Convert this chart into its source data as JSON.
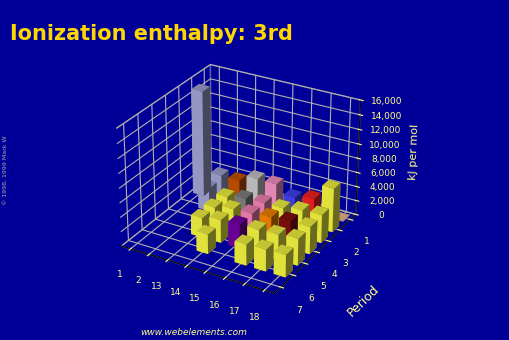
{
  "title": "Ionization enthalpy: 3rd",
  "title_color": "#FFD700",
  "bg_color": "#000099",
  "floor_color": "#606060",
  "tick_color": "#FFFF88",
  "grid_color": "#CCCC99",
  "website": "www.webelements.com",
  "copyright": "© 1998, 1999 Mark W",
  "period_label": "Period",
  "zlabel": "kJ per mol",
  "groups": [
    1,
    2,
    13,
    14,
    15,
    16,
    17,
    18
  ],
  "periods": [
    1,
    2,
    3,
    4,
    5,
    6,
    7
  ],
  "zlim": [
    0,
    16000
  ],
  "zticks": [
    0,
    2000,
    4000,
    6000,
    8000,
    10000,
    12000,
    14000,
    16000
  ],
  "ie3": {
    "1": {
      "1": 0,
      "2": 0,
      "13": 0,
      "14": 0,
      "15": 0,
      "16": 0,
      "17": 0,
      "18": 0
    },
    "2": {
      "1": 14849,
      "2": 3659,
      "13": 3659,
      "14": 4621,
      "15": 4578,
      "16": 3388,
      "17": 3952,
      "18": 6122
    },
    "3": {
      "1": 0,
      "2": 3232,
      "13": 2744,
      "14": 3229,
      "15": 3357,
      "16": 3376,
      "17": 3822,
      "18": 3931
    },
    "4": {
      "1": 0,
      "2": 0,
      "13": 2704,
      "14": 3232,
      "15": 3357,
      "16": 3600,
      "17": 3822,
      "18": 3800
    },
    "5": {
      "1": 0,
      "2": 0,
      "13": 2700,
      "14": 3200,
      "15": 3300,
      "16": 3400,
      "17": 3500,
      "18": 3700
    },
    "6": {
      "1": 0,
      "2": 0,
      "13": 0,
      "14": 2700,
      "15": 0,
      "16": 2900,
      "17": 3000,
      "18": 3100
    },
    "7": {
      "1": 0,
      "2": 0,
      "13": 0,
      "14": 0,
      "15": 0,
      "16": 0,
      "17": 0,
      "18": 0
    }
  },
  "bar_colors": {
    "1": {
      "1": "#9999CC",
      "2": "#AAAADD",
      "13": "#FFFF44",
      "14": "#FFFF44",
      "15": "#FFFF44",
      "16": "#FFFF44",
      "17": "#FFFF44",
      "18": "#FFCC99"
    },
    "2": {
      "1": "#AAAADD",
      "2": "#AAAADD",
      "13": "#CC5500",
      "14": "#D0D0D0",
      "15": "#FF99CC",
      "16": "#4444FF",
      "17": "#FF2222",
      "18": "#FFFF44"
    },
    "3": {
      "1": "#AAAADD",
      "2": "#AAAADD",
      "13": "#FFFF44",
      "14": "#888888",
      "15": "#FF88BB",
      "16": "#FFFF44",
      "17": "#FFFF44",
      "18": "#FFFF44"
    },
    "4": {
      "1": "#AAAADD",
      "2": "#AAAADD",
      "13": "#FFFF44",
      "14": "#FFFF44",
      "15": "#FF88BB",
      "16": "#FF8800",
      "17": "#881111",
      "18": "#FFFF44"
    },
    "5": {
      "1": "#AAAADD",
      "2": "#AAAADD",
      "13": "#FFFF44",
      "14": "#FFFF44",
      "15": "#7700AA",
      "16": "#FFFF44",
      "17": "#FFFF44",
      "18": "#FFFF44"
    },
    "6": {
      "1": "#AAAADD",
      "2": "#AAAADD",
      "13": "#FFFF44",
      "14": "#FFFF44",
      "15": "#FFFF44",
      "16": "#FFFF44",
      "17": "#FFFF44",
      "18": "#FFFF44"
    },
    "7": {
      "1": "#AAAADD",
      "2": "#AAAADD",
      "13": "#FFFF44",
      "14": "#FFFF44",
      "15": "#FFFF44",
      "16": "#FFFF44",
      "17": "#FFFF44",
      "18": "#FFFF44"
    }
  },
  "elev": 28,
  "azim": -60,
  "title_fontsize": 15,
  "tick_fontsize": 6.5,
  "label_fontsize": 9
}
